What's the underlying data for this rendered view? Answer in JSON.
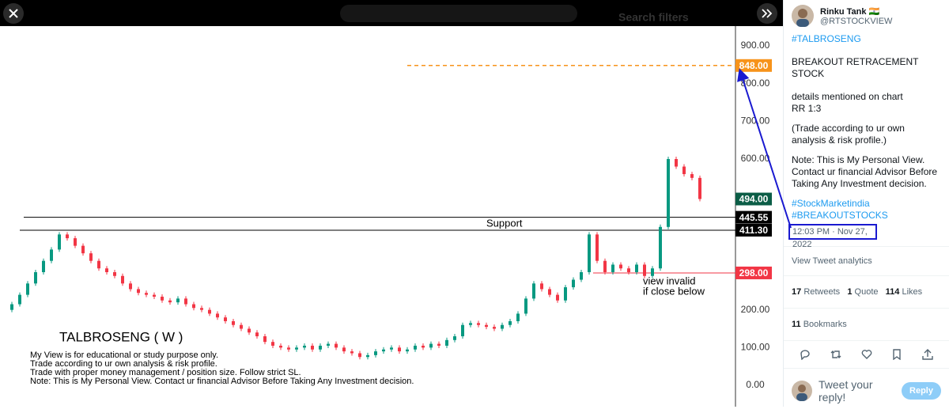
{
  "top_bar": {
    "search_filters": "Search filters"
  },
  "chart": {
    "ylim": [
      0,
      900
    ],
    "yticks": [
      {
        "value": 0,
        "label": "0.00"
      },
      {
        "value": 100,
        "label": "100.00"
      },
      {
        "value": 200,
        "label": "200.00"
      },
      {
        "value": 600,
        "label": "600.00"
      },
      {
        "value": 700,
        "label": "700.00"
      },
      {
        "value": 800,
        "label": "800.00"
      },
      {
        "value": 900,
        "label": "900.00"
      }
    ],
    "price_tags": [
      {
        "value": 848,
        "label": "848.00",
        "color": "#f7931a"
      },
      {
        "value": 494,
        "label": "494.00",
        "color": "#0b5d46"
      },
      {
        "value": 445.55,
        "label": "445.55",
        "color": "#000000"
      },
      {
        "value": 411.3,
        "label": "411.30",
        "color": "#000000"
      },
      {
        "value": 298,
        "label": "298.00",
        "color": "#f23645"
      }
    ],
    "closes": [
      200,
      215,
      240,
      270,
      300,
      330,
      360,
      400,
      390,
      370,
      350,
      330,
      310,
      300,
      290,
      270,
      255,
      245,
      240,
      235,
      225,
      220,
      230,
      215,
      205,
      200,
      190,
      180,
      170,
      160,
      150,
      140,
      130,
      115,
      105,
      100,
      95,
      100,
      105,
      95,
      105,
      110,
      100,
      90,
      85,
      75,
      80,
      90,
      95,
      100,
      90,
      95,
      105,
      100,
      110,
      105,
      120,
      130,
      160,
      165,
      160,
      155,
      150,
      160,
      170,
      190,
      230,
      270,
      255,
      240,
      225,
      260,
      280,
      300,
      400,
      330,
      300,
      320,
      310,
      300,
      320,
      290,
      310,
      420,
      600,
      580,
      560,
      550,
      494
    ],
    "up_color": "#089981",
    "down_color": "#f23645",
    "support_label": "Support",
    "invalid_label": [
      "view invalid",
      "if close below"
    ],
    "title": "TALBROSENG ( W )",
    "notes": [
      "My View is for educational or study purpose only.",
      "Trade according to ur own analysis & risk profile.",
      "Trade with proper money management / position size. Follow strict SL.",
      "Note: This is My Personal View. Contact ur financial Advisor Before Taking Any Investment decision."
    ]
  },
  "tweet": {
    "name": "Rinku Tank 🇮🇳",
    "handle": "@RTSTOCKVIEW",
    "lines": [
      "#TALBROSENG",
      "BREAKOUT RETRACEMENT STOCK",
      "details mentioned on chart",
      "RR 1:3",
      "(Trade according to ur own analysis & risk profile.)",
      "Note: This is My Personal View. Contact ur financial Advisor Before Taking Any Investment decision.",
      "#StockMarketindia",
      "#BREAKOUTSTOCKS"
    ],
    "timestamp": "12:03 PM · Nov 27, 2022",
    "analytics": "View Tweet analytics",
    "retweets": 17,
    "retweets_label": "Retweets",
    "quotes": 1,
    "quotes_label": "Quote",
    "likes": 114,
    "likes_label": "Likes",
    "bookmarks": 11,
    "bookmarks_label": "Bookmarks",
    "reply_placeholder": "Tweet your reply!",
    "reply_button": "Reply"
  }
}
